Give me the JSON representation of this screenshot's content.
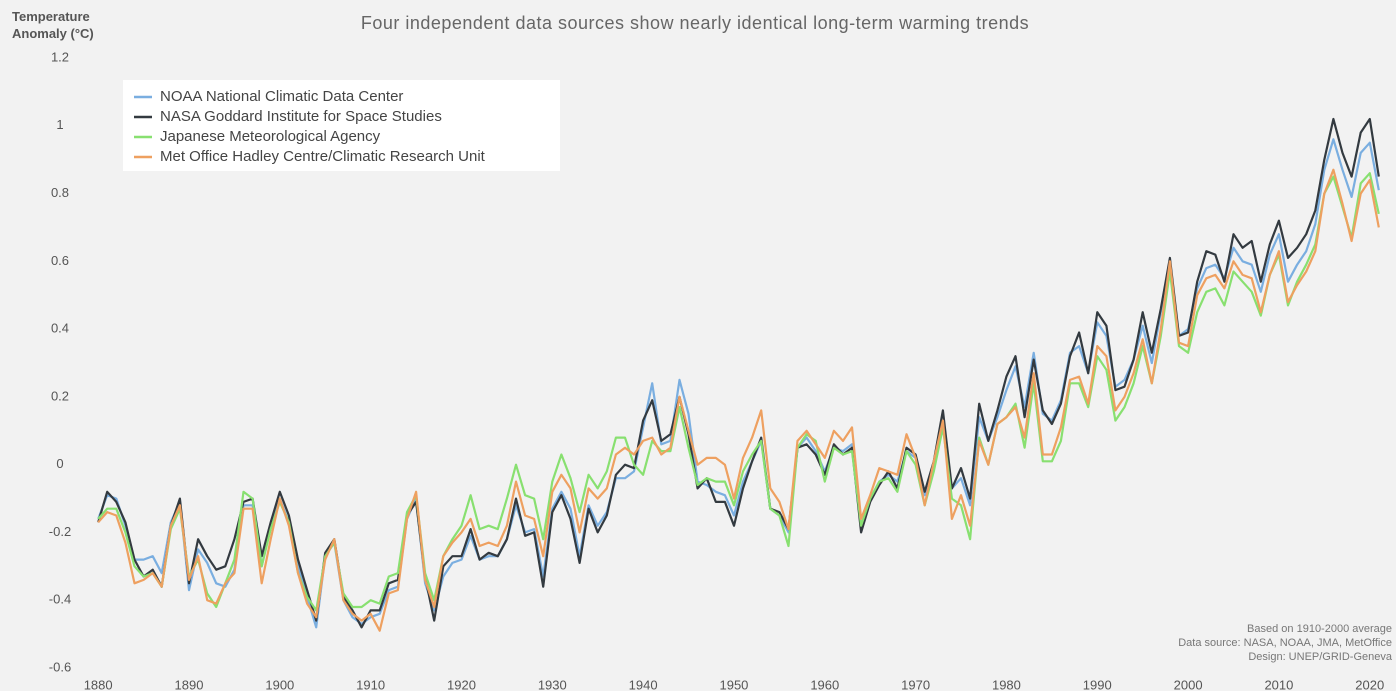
{
  "chart_data": {
    "type": "line",
    "title": "Four independent data sources show nearly identical long-term warming trends",
    "y_label": "Temperature Anomaly (°C)",
    "annotations": [
      "Based on 1910-2000 average",
      "Data source: NASA, NOAA, JMA, MetOffice",
      "Design: UNEP/GRID-Geneva"
    ],
    "x": [
      1880,
      1881,
      1882,
      1883,
      1884,
      1885,
      1886,
      1887,
      1888,
      1889,
      1890,
      1891,
      1892,
      1893,
      1894,
      1895,
      1896,
      1897,
      1898,
      1899,
      1900,
      1901,
      1902,
      1903,
      1904,
      1905,
      1906,
      1907,
      1908,
      1909,
      1910,
      1911,
      1912,
      1913,
      1914,
      1915,
      1916,
      1917,
      1918,
      1919,
      1920,
      1921,
      1922,
      1923,
      1924,
      1925,
      1926,
      1927,
      1928,
      1929,
      1930,
      1931,
      1932,
      1933,
      1934,
      1935,
      1936,
      1937,
      1938,
      1939,
      1940,
      1941,
      1942,
      1943,
      1944,
      1945,
      1946,
      1947,
      1948,
      1949,
      1950,
      1951,
      1952,
      1953,
      1954,
      1955,
      1956,
      1957,
      1958,
      1959,
      1960,
      1961,
      1962,
      1963,
      1964,
      1965,
      1966,
      1967,
      1968,
      1969,
      1970,
      1971,
      1972,
      1973,
      1974,
      1975,
      1976,
      1977,
      1978,
      1979,
      1980,
      1981,
      1982,
      1983,
      1984,
      1985,
      1986,
      1987,
      1988,
      1989,
      1990,
      1991,
      1992,
      1993,
      1994,
      1995,
      1996,
      1997,
      1998,
      1999,
      2000,
      2001,
      2002,
      2003,
      2004,
      2005,
      2006,
      2007,
      2008,
      2009,
      2010,
      2011,
      2012,
      2013,
      2014,
      2015,
      2016,
      2017,
      2018,
      2019,
      2020,
      2021
    ],
    "series": [
      {
        "name": "NOAA National Climatic Data Center",
        "color": "#7aaee0",
        "values": [
          -0.16,
          -0.09,
          -0.1,
          -0.18,
          -0.28,
          -0.28,
          -0.27,
          -0.32,
          -0.17,
          -0.11,
          -0.37,
          -0.25,
          -0.29,
          -0.35,
          -0.36,
          -0.31,
          -0.12,
          -0.12,
          -0.3,
          -0.18,
          -0.1,
          -0.17,
          -0.3,
          -0.39,
          -0.48,
          -0.27,
          -0.23,
          -0.4,
          -0.45,
          -0.47,
          -0.45,
          -0.44,
          -0.37,
          -0.36,
          -0.16,
          -0.1,
          -0.35,
          -0.43,
          -0.33,
          -0.29,
          -0.28,
          -0.21,
          -0.28,
          -0.27,
          -0.27,
          -0.22,
          -0.12,
          -0.2,
          -0.19,
          -0.33,
          -0.13,
          -0.08,
          -0.13,
          -0.27,
          -0.12,
          -0.18,
          -0.14,
          -0.04,
          -0.04,
          -0.02,
          0.11,
          0.24,
          0.06,
          0.07,
          0.25,
          0.15,
          -0.05,
          -0.06,
          -0.08,
          -0.09,
          -0.15,
          -0.05,
          0.01,
          0.07,
          -0.13,
          -0.15,
          -0.2,
          0.05,
          0.08,
          0.04,
          -0.02,
          0.05,
          0.04,
          0.06,
          -0.18,
          -0.1,
          -0.05,
          -0.03,
          -0.05,
          0.04,
          0.02,
          -0.09,
          0.0,
          0.13,
          -0.07,
          -0.04,
          -0.12,
          0.14,
          0.07,
          0.14,
          0.22,
          0.29,
          0.17,
          0.33,
          0.15,
          0.13,
          0.19,
          0.33,
          0.35,
          0.27,
          0.42,
          0.38,
          0.23,
          0.25,
          0.31,
          0.41,
          0.3,
          0.45,
          0.59,
          0.38,
          0.4,
          0.52,
          0.58,
          0.59,
          0.55,
          0.64,
          0.6,
          0.59,
          0.51,
          0.62,
          0.68,
          0.54,
          0.59,
          0.63,
          0.71,
          0.87,
          0.96,
          0.87,
          0.79,
          0.92,
          0.95,
          0.81
        ]
      },
      {
        "name": "NASA Goddard Institute for Space Studies",
        "color": "#333a40",
        "values": [
          -0.17,
          -0.08,
          -0.11,
          -0.17,
          -0.28,
          -0.33,
          -0.31,
          -0.36,
          -0.18,
          -0.1,
          -0.35,
          -0.22,
          -0.27,
          -0.31,
          -0.3,
          -0.22,
          -0.11,
          -0.1,
          -0.27,
          -0.17,
          -0.08,
          -0.15,
          -0.28,
          -0.37,
          -0.46,
          -0.26,
          -0.22,
          -0.39,
          -0.43,
          -0.48,
          -0.43,
          -0.43,
          -0.35,
          -0.34,
          -0.15,
          -0.11,
          -0.33,
          -0.46,
          -0.3,
          -0.27,
          -0.27,
          -0.19,
          -0.28,
          -0.26,
          -0.27,
          -0.22,
          -0.1,
          -0.21,
          -0.2,
          -0.36,
          -0.14,
          -0.09,
          -0.16,
          -0.29,
          -0.13,
          -0.2,
          -0.15,
          -0.03,
          0.0,
          -0.01,
          0.13,
          0.19,
          0.07,
          0.09,
          0.2,
          0.09,
          -0.07,
          -0.04,
          -0.11,
          -0.11,
          -0.18,
          -0.07,
          0.01,
          0.08,
          -0.13,
          -0.14,
          -0.19,
          0.05,
          0.06,
          0.03,
          -0.03,
          0.06,
          0.03,
          0.05,
          -0.2,
          -0.11,
          -0.06,
          -0.02,
          -0.07,
          0.05,
          0.03,
          -0.08,
          0.01,
          0.16,
          -0.07,
          -0.01,
          -0.1,
          0.18,
          0.07,
          0.16,
          0.26,
          0.32,
          0.14,
          0.31,
          0.16,
          0.12,
          0.18,
          0.32,
          0.39,
          0.27,
          0.45,
          0.41,
          0.22,
          0.23,
          0.31,
          0.45,
          0.33,
          0.46,
          0.61,
          0.38,
          0.39,
          0.54,
          0.63,
          0.62,
          0.54,
          0.68,
          0.64,
          0.66,
          0.54,
          0.65,
          0.72,
          0.61,
          0.64,
          0.68,
          0.75,
          0.9,
          1.02,
          0.92,
          0.85,
          0.98,
          1.02,
          0.85
        ]
      },
      {
        "name": "Japanese Meteorological Agency",
        "color": "#88e070",
        "values": [
          -0.16,
          -0.13,
          -0.13,
          -0.2,
          -0.3,
          -0.33,
          -0.32,
          -0.36,
          -0.19,
          -0.13,
          -0.33,
          -0.28,
          -0.38,
          -0.42,
          -0.35,
          -0.28,
          -0.08,
          -0.1,
          -0.3,
          -0.19,
          -0.11,
          -0.17,
          -0.32,
          -0.39,
          -0.43,
          -0.27,
          -0.23,
          -0.38,
          -0.42,
          -0.42,
          -0.4,
          -0.41,
          -0.33,
          -0.32,
          -0.14,
          -0.09,
          -0.32,
          -0.4,
          -0.27,
          -0.22,
          -0.18,
          -0.09,
          -0.19,
          -0.18,
          -0.19,
          -0.1,
          0.0,
          -0.09,
          -0.1,
          -0.22,
          -0.05,
          0.03,
          -0.04,
          -0.14,
          -0.03,
          -0.07,
          -0.02,
          0.08,
          0.08,
          0.0,
          -0.03,
          0.07,
          0.04,
          0.04,
          0.17,
          0.05,
          -0.06,
          -0.04,
          -0.05,
          -0.05,
          -0.12,
          -0.02,
          0.03,
          0.07,
          -0.13,
          -0.15,
          -0.24,
          0.05,
          0.09,
          0.07,
          -0.05,
          0.05,
          0.03,
          0.04,
          -0.18,
          -0.1,
          -0.05,
          -0.04,
          -0.08,
          0.04,
          0.0,
          -0.12,
          -0.02,
          0.11,
          -0.1,
          -0.12,
          -0.22,
          0.08,
          0.0,
          0.12,
          0.14,
          0.18,
          0.05,
          0.24,
          0.01,
          0.01,
          0.07,
          0.24,
          0.24,
          0.17,
          0.32,
          0.28,
          0.13,
          0.17,
          0.24,
          0.35,
          0.24,
          0.38,
          0.57,
          0.35,
          0.33,
          0.45,
          0.51,
          0.52,
          0.47,
          0.57,
          0.54,
          0.51,
          0.44,
          0.56,
          0.62,
          0.47,
          0.54,
          0.59,
          0.65,
          0.8,
          0.85,
          0.76,
          0.67,
          0.83,
          0.86,
          0.74
        ]
      },
      {
        "name": "Met Office Hadley Centre/Climatic Research Unit",
        "color": "#eea060",
        "values": [
          -0.17,
          -0.14,
          -0.15,
          -0.23,
          -0.35,
          -0.34,
          -0.32,
          -0.36,
          -0.18,
          -0.12,
          -0.34,
          -0.27,
          -0.4,
          -0.41,
          -0.35,
          -0.32,
          -0.13,
          -0.13,
          -0.35,
          -0.22,
          -0.1,
          -0.18,
          -0.32,
          -0.41,
          -0.45,
          -0.28,
          -0.22,
          -0.4,
          -0.44,
          -0.46,
          -0.44,
          -0.49,
          -0.38,
          -0.37,
          -0.16,
          -0.08,
          -0.34,
          -0.42,
          -0.27,
          -0.23,
          -0.2,
          -0.16,
          -0.24,
          -0.23,
          -0.24,
          -0.18,
          -0.05,
          -0.15,
          -0.16,
          -0.27,
          -0.08,
          -0.03,
          -0.07,
          -0.2,
          -0.07,
          -0.1,
          -0.07,
          0.03,
          0.05,
          0.03,
          0.07,
          0.08,
          0.03,
          0.05,
          0.2,
          0.1,
          0.0,
          0.02,
          0.02,
          0.0,
          -0.1,
          0.02,
          0.08,
          0.16,
          -0.07,
          -0.11,
          -0.19,
          0.07,
          0.1,
          0.06,
          0.02,
          0.1,
          0.07,
          0.11,
          -0.16,
          -0.09,
          -0.01,
          -0.02,
          -0.03,
          0.09,
          0.02,
          -0.12,
          0.01,
          0.13,
          -0.16,
          -0.09,
          -0.18,
          0.07,
          0.0,
          0.12,
          0.14,
          0.17,
          0.08,
          0.27,
          0.03,
          0.03,
          0.11,
          0.25,
          0.26,
          0.18,
          0.35,
          0.32,
          0.16,
          0.2,
          0.27,
          0.37,
          0.24,
          0.4,
          0.6,
          0.36,
          0.35,
          0.5,
          0.55,
          0.56,
          0.52,
          0.6,
          0.56,
          0.55,
          0.45,
          0.56,
          0.63,
          0.48,
          0.53,
          0.57,
          0.63,
          0.8,
          0.87,
          0.77,
          0.66,
          0.8,
          0.84,
          0.7
        ]
      }
    ],
    "xlim": [
      1878,
      2023
    ],
    "xticks": [
      1880,
      1890,
      1900,
      1910,
      1920,
      1930,
      1940,
      1950,
      1960,
      1970,
      1980,
      1990,
      2000,
      2010,
      2020
    ],
    "ylim": [
      -0.6,
      1.2
    ],
    "yticks": [
      -0.6,
      -0.4,
      -0.2,
      0,
      0.2,
      0.4,
      0.6,
      0.8,
      1,
      1.2
    ],
    "grid": false,
    "legend": "top-left"
  }
}
